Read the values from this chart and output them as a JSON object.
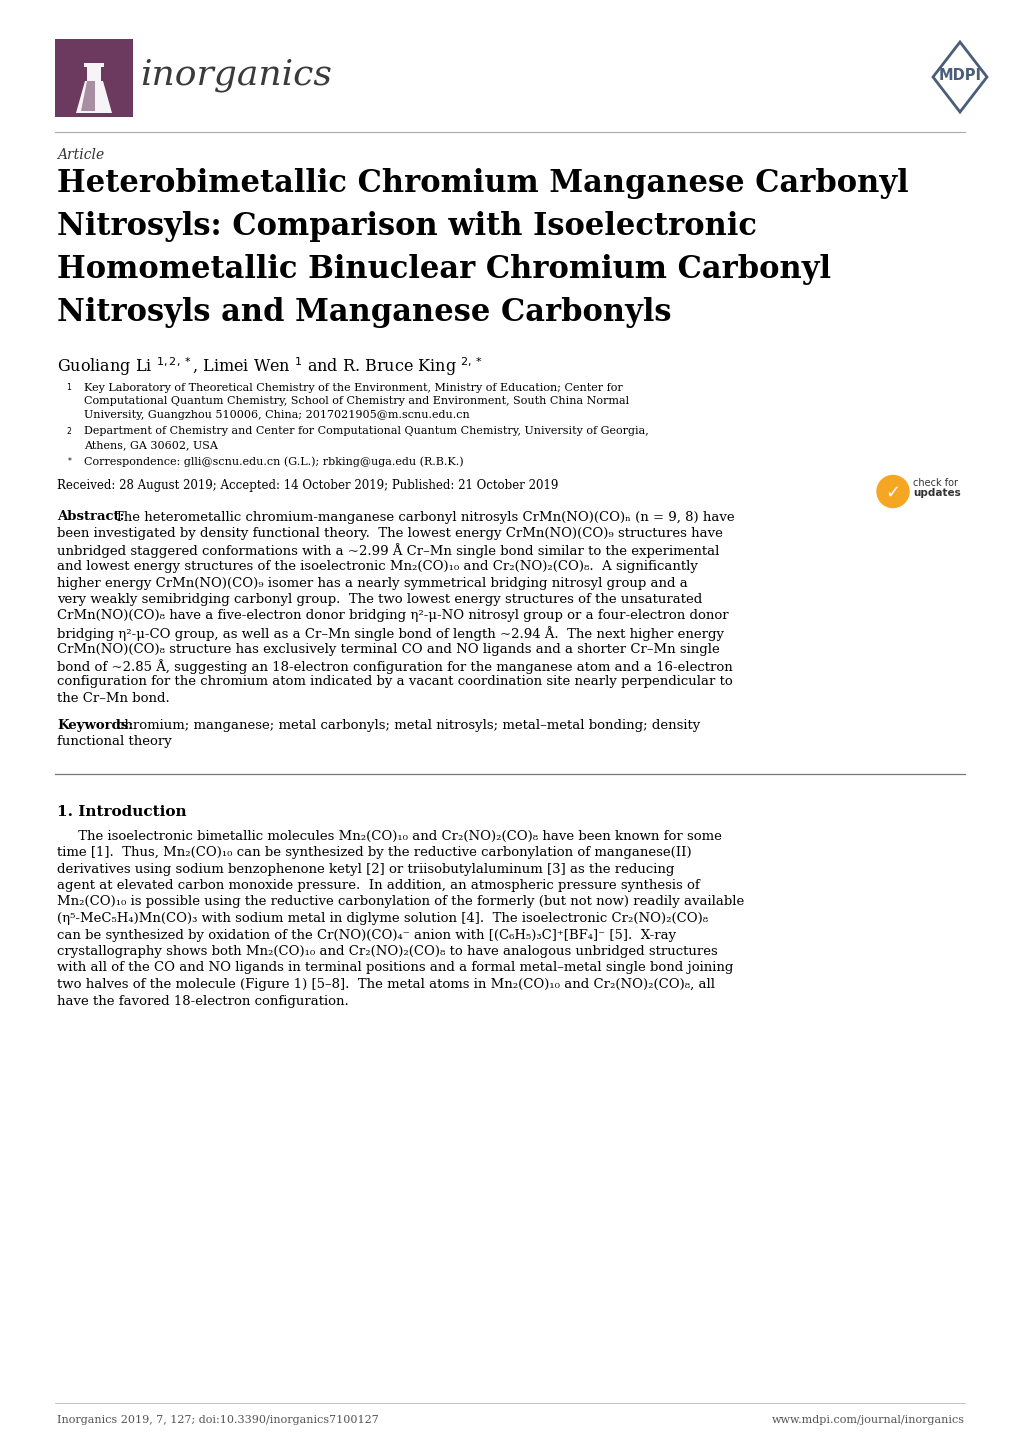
{
  "title_line1": "Heterobimetallic Chromium Manganese Carbonyl",
  "title_line2": "Nitrosyls: Comparison with Isoelectronic",
  "title_line3": "Homometallic Binuclear Chromium Carbonyl",
  "title_line4": "Nitrosyls and Manganese Carbonyls",
  "article_label": "Article",
  "journal_name": "inorganics",
  "authors_line": "Guoliang Li $^{1,2,*}$, Limei Wen $^1$ and R. Bruce King $^{2,*}$",
  "aff1_lines": [
    "Key Laboratory of Theoretical Chemistry of the Environment, Ministry of Education; Center for",
    "Computational Quantum Chemistry, School of Chemistry and Environment, South China Normal",
    "University, Guangzhou 510006, China; 2017021905@m.scnu.edu.cn"
  ],
  "aff2_lines": [
    "Department of Chemistry and Center for Computational Quantum Chemistry, University of Georgia,",
    "Athens, GA 30602, USA"
  ],
  "corresp": "Correspondence: glli@scnu.edu.cn (G.L.); rbking@uga.edu (R.B.K.)",
  "received": "Received: 28 August 2019; Accepted: 14 October 2019; Published: 21 October 2019",
  "abstract_lines": [
    "Abstract: The heterometallic chromium-manganese carbonyl nitrosyls CrMn(NO)(CO)ₙ (n = 9, 8) have",
    "been investigated by density functional theory.  The lowest energy CrMn(NO)(CO)₉ structures have",
    "unbridged staggered conformations with a ~2.99 Å Cr–Mn single bond similar to the experimental",
    "and lowest energy structures of the isoelectronic Mn₂(CO)₁₀ and Cr₂(NO)₂(CO)₈.  A significantly",
    "higher energy CrMn(NO)(CO)₉ isomer has a nearly symmetrical bridging nitrosyl group and a",
    "very weakly semibridging carbonyl group.  The two lowest energy structures of the unsaturated",
    "CrMn(NO)(CO)₈ have a five-electron donor bridging η²-μ-NO nitrosyl group or a four-electron donor",
    "bridging η²-μ-CO group, as well as a Cr–Mn single bond of length ~2.94 Å.  The next higher energy",
    "CrMn(NO)(CO)₈ structure has exclusively terminal CO and NO ligands and a shorter Cr–Mn single",
    "bond of ~2.85 Å, suggesting an 18-electron configuration for the manganese atom and a 16-electron",
    "configuration for the chromium atom indicated by a vacant coordination site nearly perpendicular to",
    "the Cr–Mn bond."
  ],
  "keywords_lines": [
    "Keywords: chromium; manganese; metal carbonyls; metal nitrosyls; metal–metal bonding; density",
    "functional theory"
  ],
  "section1_title": "1. Introduction",
  "intro_lines": [
    "     The isoelectronic bimetallic molecules Mn₂(CO)₁₀ and Cr₂(NO)₂(CO)₈ have been known for some",
    "time [1].  Thus, Mn₂(CO)₁₀ can be synthesized by the reductive carbonylation of manganese(II)",
    "derivatives using sodium benzophenone ketyl [2] or triisobutylaluminum [3] as the reducing",
    "agent at elevated carbon monoxide pressure.  In addition, an atmospheric pressure synthesis of",
    "Mn₂(CO)₁₀ is possible using the reductive carbonylation of the formerly (but not now) readily available",
    "(η⁵-MeC₅H₄)Mn(CO)₃ with sodium metal in diglyme solution [4].  The isoelectronic Cr₂(NO)₂(CO)₈",
    "can be synthesized by oxidation of the Cr(NO)(CO)₄⁻ anion with [(C₆H₅)₃C]⁺[BF₄]⁻ [5].  X-ray",
    "crystallography shows both Mn₂(CO)₁₀ and Cr₂(NO)₂(CO)₈ to have analogous unbridged structures",
    "with all of the CO and NO ligands in terminal positions and a formal metal–metal single bond joining",
    "two halves of the molecule (Figure 1) [5–8].  The metal atoms in Mn₂(CO)₁₀ and Cr₂(NO)₂(CO)₈, all",
    "have the favored 18-electron configuration."
  ],
  "footer_left": "Inorganics 2019, 7, 127; doi:10.3390/inorganics7100127",
  "footer_right": "www.mdpi.com/journal/inorganics",
  "logo_color": "#6b3a5e",
  "mdpi_color": "#4a5e7a",
  "bg": "#ffffff",
  "black": "#000000",
  "gray": "#555555",
  "blue": "#3a6fa8"
}
